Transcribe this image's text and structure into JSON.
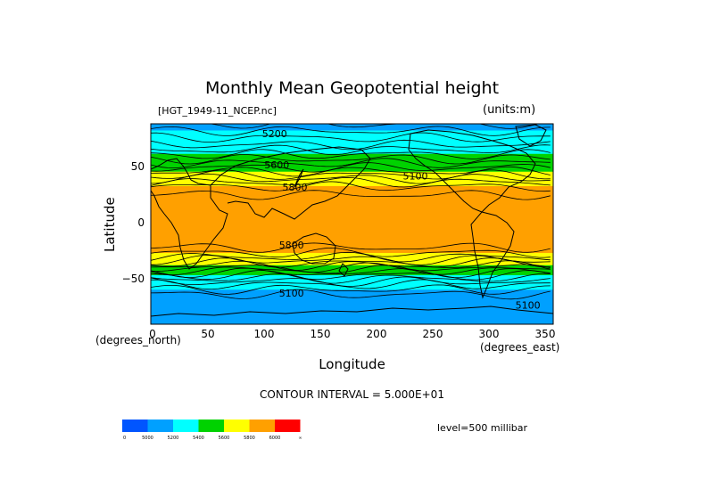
{
  "header": {
    "title": "Monthly Mean Geopotential height",
    "file": "[HGT_1949-11_NCEP.nc]",
    "units": "(units:m)"
  },
  "axes": {
    "xlabel": "Longitude",
    "ylabel": "Latitude",
    "x_unit_left": "(degrees_north)",
    "x_unit_right": "(degrees_east)",
    "x_ticks": [
      "0",
      "50",
      "100",
      "150",
      "200",
      "250",
      "300",
      "350"
    ],
    "y_ticks": [
      "50",
      "0",
      "−50"
    ]
  },
  "footer": {
    "contour_interval": "CONTOUR INTERVAL = 5.000E+01",
    "level": "level=500 millibar"
  },
  "colorbar": {
    "labels": [
      "0",
      "5000",
      "5200",
      "5400",
      "5600",
      "5800",
      "6000",
      "∞"
    ],
    "colors": [
      "#0055ff",
      "#00a0ff",
      "#00ffff",
      "#00d200",
      "#ffff00",
      "#ffa000",
      "#ff0000"
    ]
  },
  "chart_data": {
    "type": "heatmap",
    "title": "Monthly Mean Geopotential height",
    "xlabel": "Longitude",
    "ylabel": "Latitude",
    "xlim": [
      0,
      357.5
    ],
    "ylim": [
      -90,
      90
    ],
    "x_ticks": [
      0,
      50,
      100,
      150,
      200,
      250,
      300,
      350
    ],
    "y_ticks": [
      50,
      0,
      -50
    ],
    "contour_interval": 50,
    "level": "500 millibar",
    "color_levels": [
      0,
      5000,
      5200,
      5400,
      5600,
      5800,
      6000
    ],
    "contour_labels": [
      {
        "text": "5200",
        "lon": 110,
        "lat": 78
      },
      {
        "text": "5600",
        "lon": 112,
        "lat": 50
      },
      {
        "text": "5800",
        "lon": 128,
        "lat": 30
      },
      {
        "text": "5100",
        "lon": 235,
        "lat": 40
      },
      {
        "text": "5800",
        "lon": 125,
        "lat": -22
      },
      {
        "text": "5100",
        "lon": 125,
        "lat": -65
      },
      {
        "text": "5100",
        "lon": 335,
        "lat": -76
      }
    ],
    "latitude_bands": [
      {
        "lat": 90,
        "value": 5150
      },
      {
        "lat": 80,
        "value": 5230
      },
      {
        "lat": 70,
        "value": 5310
      },
      {
        "lat": 60,
        "value": 5430
      },
      {
        "lat": 50,
        "value": 5560
      },
      {
        "lat": 42,
        "value": 5680
      },
      {
        "lat": 35,
        "value": 5790
      },
      {
        "lat": 25,
        "value": 5860
      },
      {
        "lat": 0,
        "value": 5880
      },
      {
        "lat": -20,
        "value": 5860
      },
      {
        "lat": -28,
        "value": 5780
      },
      {
        "lat": -35,
        "value": 5650
      },
      {
        "lat": -40,
        "value": 5530
      },
      {
        "lat": -45,
        "value": 5420
      },
      {
        "lat": -55,
        "value": 5240
      },
      {
        "lat": -65,
        "value": 5130
      },
      {
        "lat": -75,
        "value": 5110
      },
      {
        "lat": -90,
        "value": 5150
      }
    ]
  }
}
